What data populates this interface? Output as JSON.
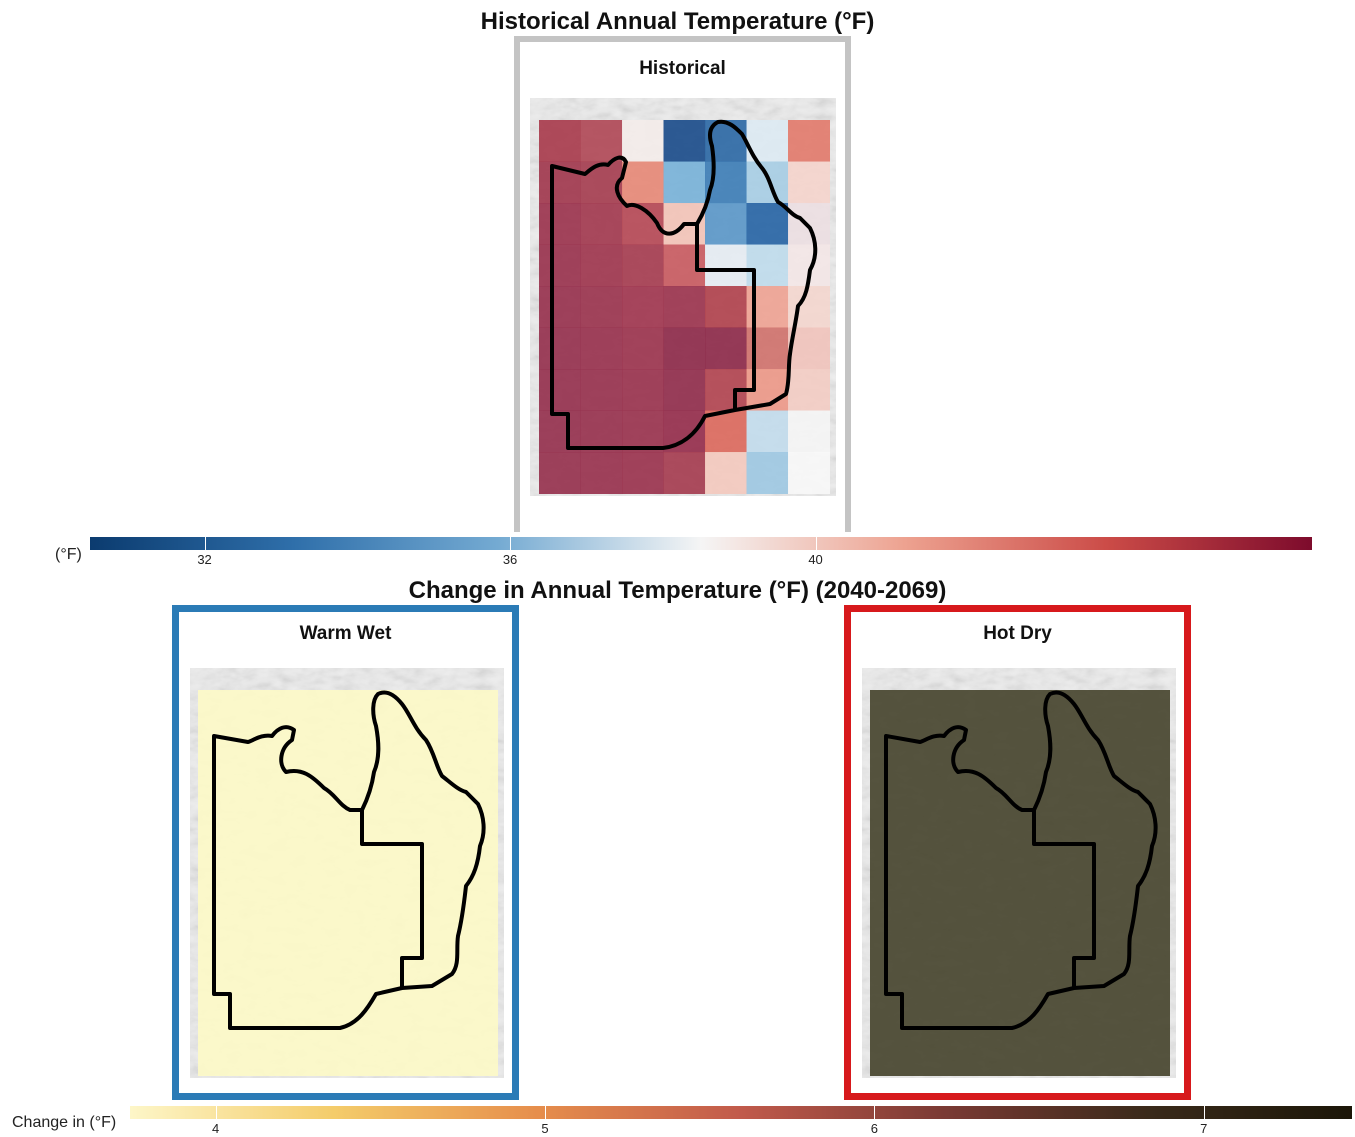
{
  "top_title": "Historical Annual Temperature (°F)",
  "bottom_title": "Change in Annual Temperature (°F) (2040-2069)",
  "panels": {
    "historical": {
      "label": "Historical",
      "border_color": "#c4c4c4"
    },
    "warm_wet": {
      "label": "Warm Wet",
      "border_color": "#2b7bb6"
    },
    "hot_dry": {
      "label": "Hot Dry",
      "border_color": "#d7191c"
    }
  },
  "historical_grid": {
    "colors": [
      [
        "#a93d4f",
        "#b04a58",
        "#f3ece9",
        "#1e4f8c",
        "#2f6aa6",
        "#dde9f2",
        "#e27c6e"
      ],
      [
        "#a13a50",
        "#a63f52",
        "#e68a79",
        "#7ab3d8",
        "#3f7fb7",
        "#a8cde4",
        "#f4d4cc"
      ],
      [
        "#9c3650",
        "#a23b51",
        "#b64a57",
        "#f2c4b8",
        "#5d98c8",
        "#2a66a6",
        "#ecdfe2"
      ],
      [
        "#9a3550",
        "#9f3850",
        "#a63e52",
        "#c85d62",
        "#e5ecf2",
        "#c0dcec",
        "#f3e6e6"
      ],
      [
        "#983450",
        "#9b3650",
        "#a03851",
        "#9c3650",
        "#b0444f",
        "#eea494",
        "#f3d6cf"
      ],
      [
        "#963350",
        "#993450",
        "#9c3650",
        "#8e2c4b",
        "#8e2c4b",
        "#d0736e",
        "#f0c4bc"
      ],
      [
        "#963350",
        "#983450",
        "#9a3550",
        "#912f4d",
        "#b24652",
        "#ec9989",
        "#f2ccc4"
      ],
      [
        "#963350",
        "#983450",
        "#9a3550",
        "#962f4d",
        "#dc6a5f",
        "#c3dcec",
        "#f4f4f4"
      ],
      [
        "#973450",
        "#993450",
        "#9b3550",
        "#a63e52",
        "#f3c9be",
        "#9fc8e2",
        "#f7f7f7"
      ]
    ]
  },
  "colorbars": {
    "historical": {
      "title": "(°F)",
      "range": [
        30.5,
        46.5
      ],
      "ticks": [
        32,
        36,
        40
      ],
      "tick_labels": [
        "32",
        "36",
        "40"
      ],
      "gradient": [
        "#0b3b6f",
        "#2f6faa",
        "#74aad2",
        "#f5f5f5",
        "#eda290",
        "#cb4b47",
        "#7d0b2c"
      ]
    },
    "change": {
      "title": "Change in (°F)",
      "range": [
        3.74,
        7.45
      ],
      "ticks": [
        4,
        5,
        6,
        7
      ],
      "tick_labels": [
        "4",
        "5",
        "6",
        "7"
      ],
      "gradient": [
        "#fdf6c8",
        "#f4cc6a",
        "#e68e4c",
        "#c15a4b",
        "#7a3a34",
        "#3a2a1a",
        "#1b1608"
      ]
    }
  },
  "change_fills": {
    "warm_wet": "#fdf9c6",
    "hot_dry": "#48452f"
  }
}
